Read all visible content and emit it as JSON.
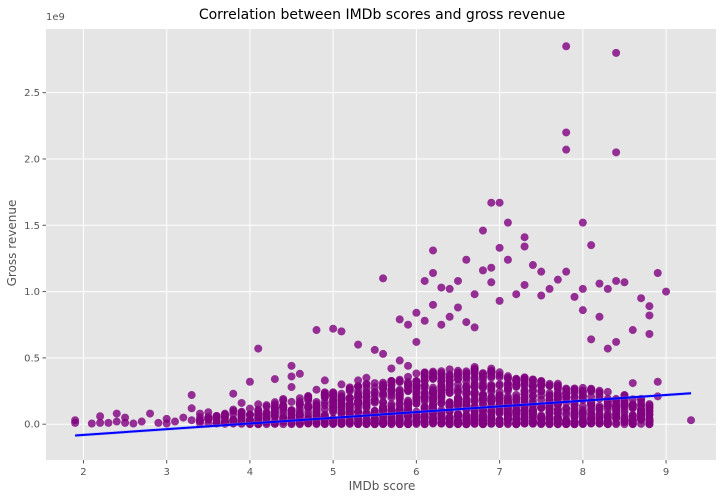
{
  "chart_data": {
    "type": "scatter",
    "title": "Correlation between IMDb scores and gross revenue",
    "xlabel": "IMDb score",
    "ylabel": "Gross revenue",
    "y_offset_label": "1e9",
    "xlim": [
      1.55,
      9.6
    ],
    "ylim": [
      -0.27,
      2.98
    ],
    "x_ticks": [
      2,
      3,
      4,
      5,
      6,
      7,
      8,
      9
    ],
    "x_tick_labels": [
      "2",
      "3",
      "4",
      "5",
      "6",
      "7",
      "8",
      "9"
    ],
    "y_ticks": [
      0.0,
      0.5,
      1.0,
      1.5,
      2.0,
      2.5
    ],
    "y_tick_labels": [
      "0.0",
      "0.5",
      "1.0",
      "1.5",
      "2.0",
      "2.5"
    ],
    "grid": true,
    "colors": {
      "background": "#e5e5e5",
      "grid": "#ffffff",
      "points": "#800080",
      "regression": "#0000ff",
      "confidence_band": "#8c8cff"
    },
    "series": [
      {
        "type": "scatter",
        "points": [
          [
            1.9,
            0.03
          ],
          [
            1.9,
            0.01
          ],
          [
            2.1,
            0.005
          ],
          [
            2.2,
            0.01
          ],
          [
            2.2,
            0.06
          ],
          [
            2.3,
            0.01
          ],
          [
            2.4,
            0.08
          ],
          [
            2.4,
            0.02
          ],
          [
            2.5,
            0.05
          ],
          [
            2.5,
            0.01
          ],
          [
            2.6,
            0.005
          ],
          [
            2.7,
            0.02
          ],
          [
            2.8,
            0.08
          ],
          [
            2.9,
            0.01
          ],
          [
            3.0,
            0.04
          ],
          [
            3.0,
            0.005
          ],
          [
            3.1,
            0.02
          ],
          [
            3.2,
            0.05
          ],
          [
            3.3,
            0.22
          ],
          [
            3.3,
            0.12
          ],
          [
            3.3,
            0.03
          ],
          [
            3.4,
            0.08
          ],
          [
            3.5,
            0.09
          ],
          [
            3.5,
            0.04
          ],
          [
            3.6,
            0.06
          ],
          [
            3.7,
            0.05
          ],
          [
            3.8,
            0.23
          ],
          [
            3.8,
            0.11
          ],
          [
            3.9,
            0.16
          ],
          [
            3.9,
            0.06
          ],
          [
            4.0,
            0.32
          ],
          [
            4.0,
            0.07
          ],
          [
            4.1,
            0.57
          ],
          [
            4.1,
            0.15
          ],
          [
            4.2,
            0.09
          ],
          [
            4.3,
            0.34
          ],
          [
            4.3,
            0.12
          ],
          [
            4.4,
            0.19
          ],
          [
            4.5,
            0.44
          ],
          [
            4.5,
            0.36
          ],
          [
            4.5,
            0.28
          ],
          [
            4.6,
            0.38
          ],
          [
            4.6,
            0.15
          ],
          [
            4.7,
            0.2
          ],
          [
            4.8,
            0.71
          ],
          [
            4.8,
            0.26
          ],
          [
            4.9,
            0.33
          ],
          [
            5.0,
            0.72
          ],
          [
            5.0,
            0.24
          ],
          [
            5.1,
            0.7
          ],
          [
            5.1,
            0.3
          ],
          [
            5.2,
            0.26
          ],
          [
            5.3,
            0.6
          ],
          [
            5.3,
            0.33
          ],
          [
            5.4,
            0.35
          ],
          [
            5.5,
            0.56
          ],
          [
            5.5,
            0.31
          ],
          [
            5.6,
            1.1
          ],
          [
            5.6,
            0.53
          ],
          [
            5.7,
            0.42
          ],
          [
            5.8,
            0.79
          ],
          [
            5.8,
            0.48
          ],
          [
            5.9,
            0.75
          ],
          [
            5.9,
            0.44
          ],
          [
            6.0,
            0.84
          ],
          [
            6.0,
            0.62
          ],
          [
            6.1,
            1.08
          ],
          [
            6.1,
            0.78
          ],
          [
            6.2,
            1.31
          ],
          [
            6.2,
            1.14
          ],
          [
            6.2,
            0.9
          ],
          [
            6.3,
            1.03
          ],
          [
            6.3,
            0.75
          ],
          [
            6.4,
            1.02
          ],
          [
            6.4,
            0.81
          ],
          [
            6.5,
            1.08
          ],
          [
            6.5,
            0.88
          ],
          [
            6.6,
            1.24
          ],
          [
            6.6,
            0.77
          ],
          [
            6.7,
            0.98
          ],
          [
            6.7,
            0.73
          ],
          [
            6.8,
            1.46
          ],
          [
            6.8,
            1.16
          ],
          [
            6.9,
            1.67
          ],
          [
            6.9,
            1.18
          ],
          [
            6.9,
            1.07
          ],
          [
            7.0,
            1.67
          ],
          [
            7.0,
            1.33
          ],
          [
            7.0,
            0.93
          ],
          [
            7.1,
            1.52
          ],
          [
            7.1,
            1.24
          ],
          [
            7.2,
            0.98
          ],
          [
            7.3,
            1.34
          ],
          [
            7.3,
            1.41
          ],
          [
            7.3,
            1.05
          ],
          [
            7.4,
            1.2
          ],
          [
            7.5,
            1.15
          ],
          [
            7.5,
            0.97
          ],
          [
            7.6,
            1.02
          ],
          [
            7.7,
            1.09
          ],
          [
            7.8,
            2.85
          ],
          [
            7.8,
            2.2
          ],
          [
            7.8,
            2.07
          ],
          [
            7.8,
            1.15
          ],
          [
            7.9,
            0.96
          ],
          [
            8.0,
            1.52
          ],
          [
            8.0,
            1.02
          ],
          [
            8.1,
            1.35
          ],
          [
            8.2,
            1.06
          ],
          [
            8.3,
            1.02
          ],
          [
            8.4,
            2.8
          ],
          [
            8.4,
            2.05
          ],
          [
            8.4,
            1.08
          ],
          [
            8.5,
            1.07
          ],
          [
            8.6,
            0.71
          ],
          [
            8.7,
            0.95
          ],
          [
            8.8,
            0.89
          ],
          [
            8.8,
            0.82
          ],
          [
            8.9,
            1.14
          ],
          [
            9.0,
            1.0
          ],
          [
            8.9,
            0.32
          ],
          [
            8.9,
            0.21
          ],
          [
            9.3,
            0.03
          ],
          [
            8.8,
            0.68
          ],
          [
            8.7,
            0.06
          ],
          [
            8.6,
            0.31
          ],
          [
            8.5,
            0.22
          ],
          [
            8.4,
            0.62
          ],
          [
            8.3,
            0.57
          ],
          [
            8.2,
            0.81
          ],
          [
            8.1,
            0.64
          ],
          [
            8.0,
            0.86
          ]
        ]
      },
      {
        "type": "regression",
        "x": [
          1.9,
          9.3
        ],
        "y": [
          -0.085,
          0.233
        ]
      }
    ]
  }
}
